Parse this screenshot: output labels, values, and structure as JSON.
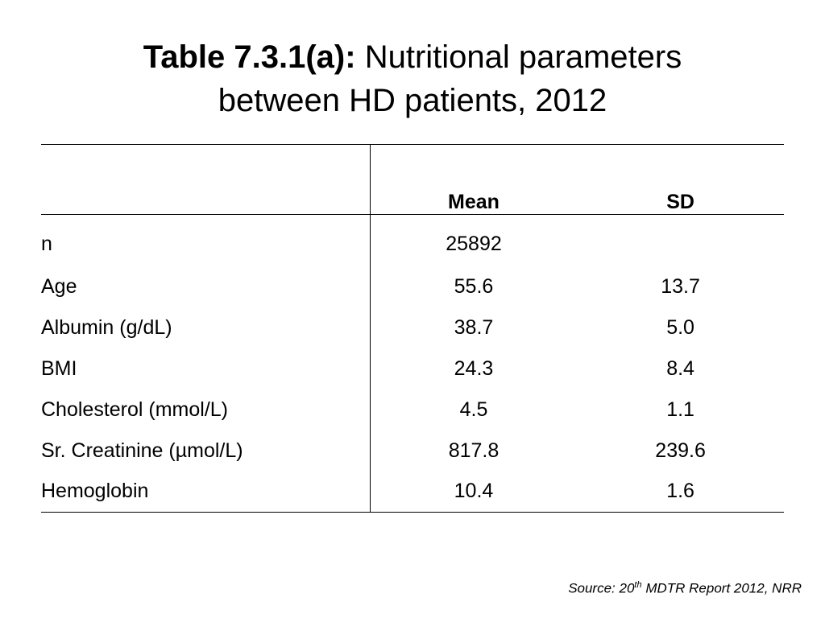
{
  "title": {
    "bold_part": "Table 7.3.1(a):",
    "line1_rest": "Nutritional parameters",
    "line2": "between HD patients, 2012"
  },
  "table": {
    "headers": [
      "",
      "Mean",
      "SD"
    ],
    "rows": [
      {
        "parameter": "n",
        "mean": "25892",
        "sd": ""
      },
      {
        "parameter": "Age",
        "mean": "55.6",
        "sd": "13.7"
      },
      {
        "parameter": "Albumin (g/dL)",
        "mean": "38.7",
        "sd": "5.0"
      },
      {
        "parameter": "BMI",
        "mean": "24.3",
        "sd": "8.4"
      },
      {
        "parameter": "Cholesterol (mmol/L)",
        "mean": "4.5",
        "sd": "1.1"
      },
      {
        "parameter": "Sr. Creatinine (µmol/L)",
        "mean": "817.8",
        "sd": "239.6"
      },
      {
        "parameter": "Hemoglobin",
        "mean": "10.4",
        "sd": "1.6"
      }
    ]
  },
  "source": {
    "prefix": "Source: 20",
    "superscript": "th",
    "suffix": " MDTR Report 2012, NRR"
  }
}
